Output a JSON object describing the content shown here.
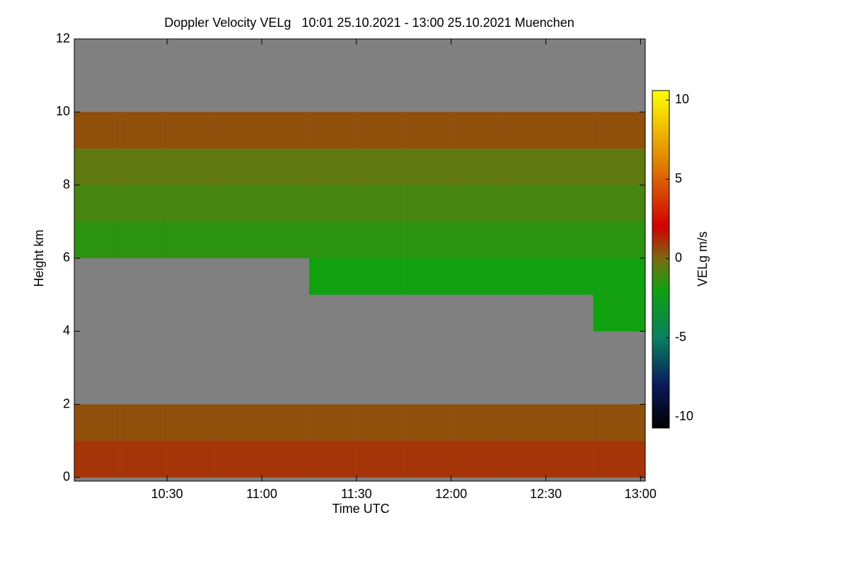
{
  "chart_data": {
    "type": "heatmap",
    "title": "Doppler Velocity VELg   10:01 25.10.2021 - 13:00 25.10.2021 Muenchen",
    "xlabel": "Time UTC",
    "ylabel": "Height km",
    "colorbar_label": "VELg m/s",
    "x": [
      10.01,
      10.25,
      10.5,
      10.75,
      11.0,
      11.25,
      11.5,
      11.75,
      12.0,
      12.25,
      12.5,
      12.75,
      13.025
    ],
    "y": [
      0,
      1,
      2,
      3,
      4,
      5,
      6,
      7,
      8,
      9,
      10,
      11,
      12
    ],
    "z": [
      [
        1,
        1,
        1,
        1,
        1,
        1,
        1,
        1,
        1,
        1,
        1,
        1
      ],
      [
        0.5,
        0.5,
        0.5,
        0.5,
        0.5,
        0.5,
        0.5,
        0.5,
        0.5,
        0.5,
        0.5,
        0.5
      ],
      [
        null,
        null,
        null,
        null,
        null,
        null,
        null,
        null,
        null,
        null,
        null,
        null
      ],
      [
        null,
        null,
        null,
        null,
        null,
        null,
        null,
        null,
        null,
        null,
        null,
        null
      ],
      [
        null,
        null,
        null,
        null,
        null,
        null,
        null,
        null,
        null,
        null,
        null,
        -2
      ],
      [
        null,
        null,
        null,
        null,
        null,
        -2,
        -2,
        -2,
        -2,
        -2,
        -2,
        -2
      ],
      [
        -1.5,
        -1.5,
        -1.5,
        -1.5,
        -1.5,
        -1.5,
        -1.5,
        -1.5,
        -1.5,
        -1.5,
        -1.5,
        -1.5
      ],
      [
        -1,
        -1,
        -1,
        -1,
        -1,
        -1,
        -1,
        -1,
        -1,
        -1,
        -1,
        -1
      ],
      [
        -0.5,
        -0.5,
        -0.5,
        -0.5,
        -0.5,
        -0.5,
        -0.5,
        -0.5,
        -0.5,
        -0.5,
        -0.5,
        -0.5
      ],
      [
        0.5,
        0.5,
        0.5,
        0.5,
        0.5,
        0.5,
        0.5,
        0.5,
        0.5,
        0.5,
        0.5,
        0.5
      ],
      [
        null,
        null,
        null,
        null,
        null,
        null,
        null,
        null,
        null,
        null,
        null,
        null
      ],
      [
        null,
        null,
        null,
        null,
        null,
        null,
        null,
        null,
        null,
        null,
        null,
        null
      ]
    ],
    "xlim": [
      10.01,
      13.025
    ],
    "ylim": [
      -0.1,
      12
    ],
    "zlim": [
      -10.7,
      10.6
    ],
    "xticks": [
      {
        "value": 10.5,
        "label": "10:30"
      },
      {
        "value": 11,
        "label": "11:00"
      },
      {
        "value": 11.5,
        "label": "11:30"
      },
      {
        "value": 12,
        "label": "12:00"
      },
      {
        "value": 12.5,
        "label": "12:30"
      },
      {
        "value": 13,
        "label": "13:00"
      }
    ],
    "yticks": [
      0,
      2,
      4,
      6,
      8,
      10,
      12
    ],
    "zticks": [
      -10,
      -5,
      0,
      5,
      10
    ],
    "missing_color": "#808080",
    "colorscale": [
      [
        -10.7,
        "#000000"
      ],
      [
        -8,
        "#0a1a5a"
      ],
      [
        -5,
        "#0a8060"
      ],
      [
        -2,
        "#10a010"
      ],
      [
        0,
        "#7a6a10"
      ],
      [
        2,
        "#d00000"
      ],
      [
        6,
        "#e08000"
      ],
      [
        10.6,
        "#ffff00"
      ]
    ]
  }
}
